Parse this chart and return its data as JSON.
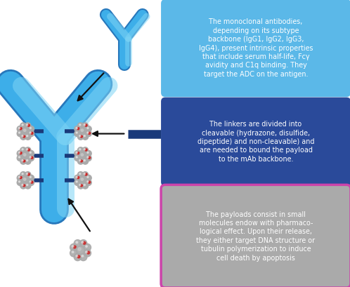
{
  "fig_width": 4.98,
  "fig_height": 4.09,
  "dpi": 100,
  "background": "#ffffff",
  "antibody_color": "#3daee9",
  "antibody_dark": "#2777bb",
  "antibody_highlight": "#7dd4f5",
  "linker_color": "#1a3a7a",
  "payload_gray": "#aaaaaa",
  "payload_red": "#cc2222",
  "box1_bg": "#5bb8e8",
  "box1_border": "#5bb8e8",
  "box2_bg": "#2a4a9a",
  "box2_border": "#2a4a9a",
  "box3_bg": "#aaaaaa",
  "box3_border": "#cc44aa",
  "text_color": "#ffffff",
  "arrow_color": "#111111",
  "box1_text": "The monoclonal antibodies,\ndepending on its subtype\nbackbone (IgG1, IgG2, IgG3,\nIgG4), present intrinsic properties\nthat include serum half-life, Fcγ\navidity and C1q binding. They\ntarget the ADC on the antigen.",
  "box2_text": "The linkers are divided into\ncleavable (hydrazone, disulfide,\ndipeptide) and non-cleavable) and\nare needed to bound the payload\nto the mAb backbone.",
  "box3_text": "The payloads consist in small\nmolecules endow with pharmaco-\nlogical effect. Upon their release,\nthey either target DNA structure or\ntubulin polymerization to induce\ncell death by apoptosis"
}
